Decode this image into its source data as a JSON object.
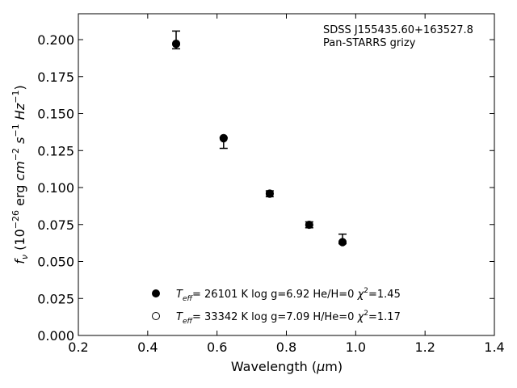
{
  "chart_data": {
    "type": "scatter",
    "annotation_lines": [
      "SDSS J155435.60+163527.8",
      "Pan-STARRS grizy"
    ],
    "xlabel": "Wavelength (μm)",
    "ylabel": "f_ν (10^-26 erg cm^-2 s^-1 Hz^-1)",
    "xlim": [
      0.2,
      1.4
    ],
    "ylim": [
      0.0,
      0.2175
    ],
    "xticks": [
      "0.2",
      "0.4",
      "0.6",
      "0.8",
      "1.0",
      "1.2",
      "1.4"
    ],
    "yticks": [
      "0.000",
      "0.025",
      "0.050",
      "0.075",
      "0.100",
      "0.125",
      "0.150",
      "0.175",
      "0.200"
    ],
    "grid": false,
    "legend_position": "lower-center",
    "series": [
      {
        "name": "T_eff= 26101 K  log g=6.92  He/H=0  χ²=1.45",
        "marker": "filled-circle",
        "points": [
          {
            "x": 0.482,
            "y": 0.1973
          },
          {
            "x": 0.619,
            "y": 0.1335
          },
          {
            "x": 0.752,
            "y": 0.0958
          },
          {
            "x": 0.866,
            "y": 0.0748
          },
          {
            "x": 0.962,
            "y": 0.0632
          }
        ]
      },
      {
        "name": "T_eff= 33342 K  log g=7.09  H/He=0  χ²=1.17",
        "marker": "open-circle",
        "points": [
          {
            "x": 0.482,
            "y": 0.197
          },
          {
            "x": 0.619,
            "y": 0.1332
          },
          {
            "x": 0.752,
            "y": 0.096
          },
          {
            "x": 0.866,
            "y": 0.0748
          },
          {
            "x": 0.962,
            "y": 0.063
          }
        ]
      }
    ],
    "observed": [
      {
        "x": 0.482,
        "y": 0.1998,
        "yerr_low": 0.006,
        "yerr_high": 0.006
      },
      {
        "x": 0.619,
        "y": 0.1325,
        "yerr_low": 0.006,
        "yerr_high": 0.0015
      },
      {
        "x": 0.752,
        "y": 0.0958,
        "yerr_low": 0.002,
        "yerr_high": 0.002
      },
      {
        "x": 0.866,
        "y": 0.0748,
        "yerr_low": 0.002,
        "yerr_high": 0.002
      },
      {
        "x": 0.962,
        "y": 0.0655,
        "yerr_low": 0.0035,
        "yerr_high": 0.003
      }
    ]
  }
}
